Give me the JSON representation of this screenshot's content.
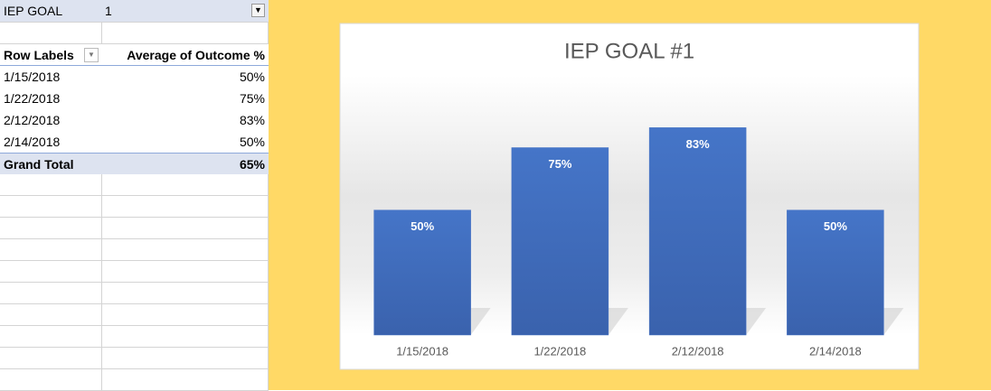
{
  "table": {
    "filter_label": "IEP GOAL",
    "filter_value": "1",
    "header": [
      "Row Labels",
      "Average of Outcome %"
    ],
    "rows": [
      [
        "1/15/2018",
        "50%"
      ],
      [
        "1/22/2018",
        "75%"
      ],
      [
        "2/12/2018",
        "83%"
      ],
      [
        "2/14/2018",
        "50%"
      ]
    ],
    "total": [
      "Grand Total",
      "65%"
    ]
  },
  "chart_data": {
    "type": "bar",
    "title": "IEP GOAL #1",
    "categories": [
      "1/15/2018",
      "1/22/2018",
      "2/12/2018",
      "2/14/2018"
    ],
    "values": [
      50,
      75,
      83,
      50
    ],
    "value_labels": [
      "50%",
      "75%",
      "83%",
      "50%"
    ],
    "color": "#4472c4",
    "ylim": [
      0,
      90
    ]
  }
}
